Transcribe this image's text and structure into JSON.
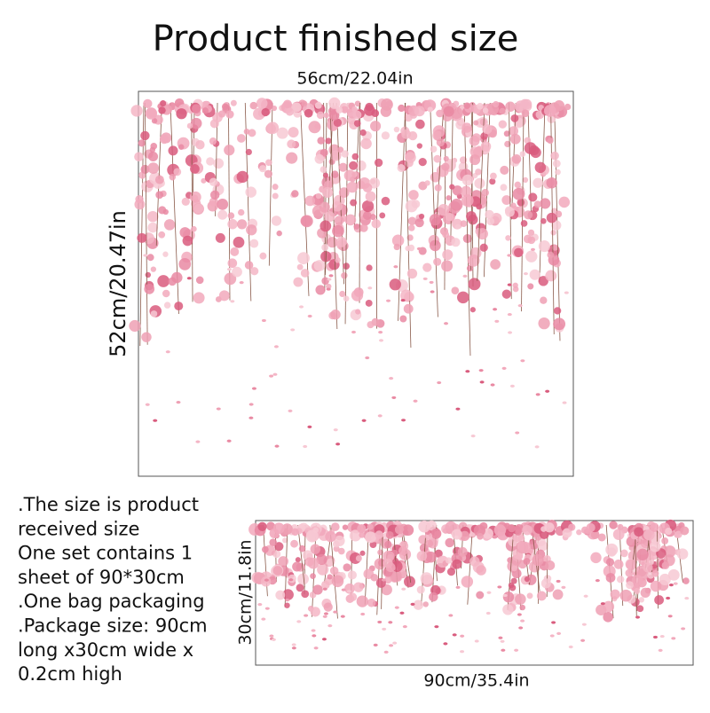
{
  "header": {
    "title": "Product finished size"
  },
  "main_image": {
    "width_label": "56cm/22.04in",
    "height_label": "52cm/20.47in"
  },
  "notes": {
    "lines": [
      ".The size is product",
      "received size",
      "One set contains 1",
      "sheet of 90*30cm",
      ".One bag packaging",
      ".Package size: 90cm",
      "long x30cm wide x",
      "0.2cm high"
    ]
  },
  "sheet_image": {
    "height_label": "30cm/11.8in",
    "width_label": "90cm/35.4in"
  }
}
